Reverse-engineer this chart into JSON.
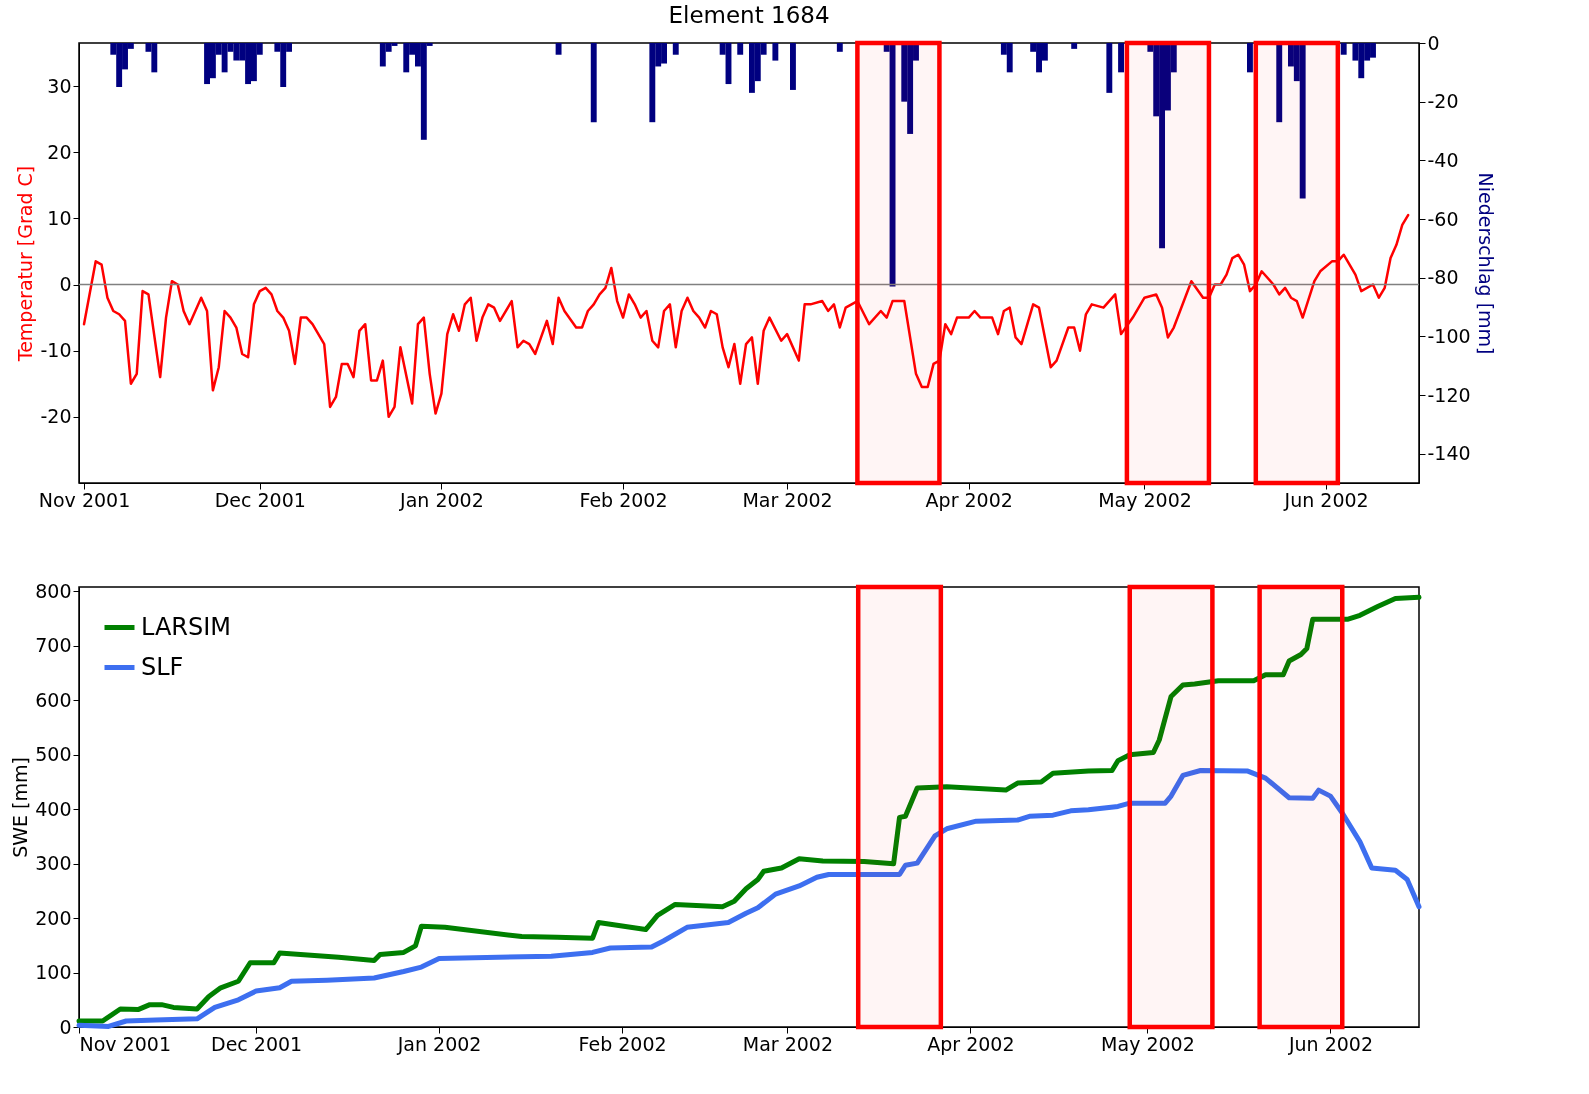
{
  "chart_data": [
    {
      "type": "line",
      "title": "Element 1684",
      "ylabel": "Temperatur [Grad C]",
      "y2label": "Niederschlag [mm]",
      "xlim": [
        "2001-11-01",
        "2002-06-16"
      ],
      "xticks": [
        {
          "value": "2001-11-01",
          "label": "Nov 2001"
        },
        {
          "value": "2001-12-01",
          "label": "Dec 2001"
        },
        {
          "value": "2002-01-01",
          "label": "Jan 2002"
        },
        {
          "value": "2002-02-01",
          "label": "Feb 2002"
        },
        {
          "value": "2002-03-01",
          "label": "Mar 2002"
        },
        {
          "value": "2002-04-01",
          "label": "Apr 2002"
        },
        {
          "value": "2002-05-01",
          "label": "May 2002"
        },
        {
          "value": "2002-06-01",
          "label": "Jun 2002"
        }
      ],
      "ylim": [
        -30,
        36.5
      ],
      "yticks": [
        -20,
        -10,
        0,
        10,
        20,
        30
      ],
      "y2lim": [
        -150,
        0
      ],
      "y2ticks": [
        0,
        -20,
        -40,
        -60,
        -80,
        -100,
        -120,
        -140
      ],
      "ref_lines": [
        {
          "axis": "y",
          "value": 0,
          "color": "#808080"
        }
      ],
      "bands": [
        {
          "axis": "x",
          "from": "2002-03-13",
          "to": "2002-03-27",
          "color": "#ff0000"
        },
        {
          "axis": "x",
          "from": "2002-04-28",
          "to": "2002-05-12",
          "color": "#ff0000"
        },
        {
          "axis": "x",
          "from": "2002-05-20",
          "to": "2002-06-03",
          "color": "#ff0000"
        }
      ],
      "series": [
        {
          "type": "bar",
          "axis": "y2",
          "color": "#000080",
          "x": [
            "2001-11-06",
            "2001-11-07",
            "2001-11-08",
            "2001-11-09",
            "2001-11-12",
            "2001-11-13",
            "2001-11-22",
            "2001-11-23",
            "2001-11-24",
            "2001-11-25",
            "2001-11-26",
            "2001-11-27",
            "2001-11-28",
            "2001-11-29",
            "2001-11-30",
            "2001-12-01",
            "2001-12-04",
            "2001-12-05",
            "2001-12-06",
            "2001-12-22",
            "2001-12-23",
            "2001-12-24",
            "2001-12-26",
            "2001-12-27",
            "2001-12-28",
            "2001-12-29",
            "2001-12-30",
            "2002-01-21",
            "2002-01-27",
            "2002-02-06",
            "2002-02-07",
            "2002-02-08",
            "2002-02-10",
            "2002-02-18",
            "2002-02-19",
            "2002-02-21",
            "2002-02-23",
            "2002-02-24",
            "2002-02-25",
            "2002-02-27",
            "2002-03-02",
            "2002-03-10",
            "2002-03-18",
            "2002-03-19",
            "2002-03-21",
            "2002-03-22",
            "2002-03-23",
            "2002-04-07",
            "2002-04-08",
            "2002-04-12",
            "2002-04-13",
            "2002-04-14",
            "2002-04-19",
            "2002-04-25",
            "2002-04-27",
            "2002-05-02",
            "2002-05-03",
            "2002-05-04",
            "2002-05-05",
            "2002-05-06",
            "2002-05-19",
            "2002-05-24",
            "2002-05-26",
            "2002-05-27",
            "2002-05-28",
            "2002-06-04",
            "2002-06-06",
            "2002-06-07",
            "2002-06-08",
            "2002-06-09"
          ],
          "values": [
            -4,
            -15,
            -9,
            -2,
            -3,
            -10,
            -14,
            -12,
            -4,
            -10,
            -3,
            -6,
            -6,
            -14,
            -13,
            -4,
            -3,
            -15,
            -3,
            -8,
            -3,
            -1,
            -10,
            -4,
            -8,
            -33,
            -1,
            -4,
            -27,
            -27,
            -8,
            -7,
            -4,
            -4,
            -14,
            -4,
            -17,
            -13,
            -4,
            -6,
            -16,
            -3,
            -3,
            -83,
            -20,
            -31,
            -6,
            -4,
            -10,
            -3,
            -10,
            -6,
            -2,
            -17,
            -10,
            -3,
            -25,
            -70,
            -23,
            -10,
            -10,
            -27,
            -8,
            -13,
            -53,
            -4,
            -6,
            -12,
            -6,
            -5
          ]
        },
        {
          "color": "#ff0000",
          "x": [
            "2001-11-01",
            "2001-11-03",
            "2001-11-04",
            "2001-11-05",
            "2001-11-06",
            "2001-11-07",
            "2001-11-08",
            "2001-11-09",
            "2001-11-10",
            "2001-11-11",
            "2001-11-12",
            "2001-11-14",
            "2001-11-15",
            "2001-11-16",
            "2001-11-17",
            "2001-11-18",
            "2001-11-19",
            "2001-11-21",
            "2001-11-22",
            "2001-11-23",
            "2001-11-24",
            "2001-11-25",
            "2001-11-26",
            "2001-11-27",
            "2001-11-28",
            "2001-11-29",
            "2001-11-30",
            "2001-12-01",
            "2001-12-02",
            "2001-12-03",
            "2001-12-04",
            "2001-12-05",
            "2001-12-06",
            "2001-12-07",
            "2001-12-08",
            "2001-12-09",
            "2001-12-10",
            "2001-12-12",
            "2001-12-13",
            "2001-12-14",
            "2001-12-15",
            "2001-12-16",
            "2001-12-17",
            "2001-12-18",
            "2001-12-19",
            "2001-12-20",
            "2001-12-21",
            "2001-12-22",
            "2001-12-23",
            "2001-12-24",
            "2001-12-25",
            "2001-12-27",
            "2001-12-28",
            "2001-12-29",
            "2001-12-30",
            "2001-12-31",
            "2002-01-01",
            "2002-01-02",
            "2002-01-03",
            "2002-01-04",
            "2002-01-05",
            "2002-01-06",
            "2002-01-07",
            "2002-01-08",
            "2002-01-09",
            "2002-01-10",
            "2002-01-11",
            "2002-01-13",
            "2002-01-14",
            "2002-01-15",
            "2002-01-16",
            "2002-01-17",
            "2002-01-19",
            "2002-01-20",
            "2002-01-21",
            "2002-01-22",
            "2002-01-24",
            "2002-01-25",
            "2002-01-26",
            "2002-01-27",
            "2002-01-28",
            "2002-01-29",
            "2002-01-30",
            "2002-01-31",
            "2002-02-01",
            "2002-02-02",
            "2002-02-03",
            "2002-02-04",
            "2002-02-05",
            "2002-02-06",
            "2002-02-07",
            "2002-02-08",
            "2002-02-09",
            "2002-02-10",
            "2002-02-11",
            "2002-02-12",
            "2002-02-13",
            "2002-02-14",
            "2002-02-15",
            "2002-02-16",
            "2002-02-17",
            "2002-02-18",
            "2002-02-19",
            "2002-02-20",
            "2002-02-21",
            "2002-02-22",
            "2002-02-23",
            "2002-02-24",
            "2002-02-25",
            "2002-02-26",
            "2002-02-28",
            "2002-03-01",
            "2002-03-03",
            "2002-03-04",
            "2002-03-05",
            "2002-03-07",
            "2002-03-08",
            "2002-03-09",
            "2002-03-10",
            "2002-03-11",
            "2002-03-13",
            "2002-03-15",
            "2002-03-17",
            "2002-03-18",
            "2002-03-19",
            "2002-03-21",
            "2002-03-23",
            "2002-03-24",
            "2002-03-25",
            "2002-03-26",
            "2002-03-27",
            "2002-03-28",
            "2002-03-29",
            "2002-03-30",
            "2002-04-01",
            "2002-04-02",
            "2002-04-03",
            "2002-04-05",
            "2002-04-06",
            "2002-04-07",
            "2002-04-08",
            "2002-04-09",
            "2002-04-10",
            "2002-04-12",
            "2002-04-13",
            "2002-04-15",
            "2002-04-16",
            "2002-04-18",
            "2002-04-19",
            "2002-04-20",
            "2002-04-21",
            "2002-04-22",
            "2002-04-24",
            "2002-04-26",
            "2002-04-27",
            "2002-04-29",
            "2002-05-01",
            "2002-05-03",
            "2002-05-04",
            "2002-05-05",
            "2002-05-06",
            "2002-05-09",
            "2002-05-11",
            "2002-05-12",
            "2002-05-13",
            "2002-05-14",
            "2002-05-15",
            "2002-05-16",
            "2002-05-17",
            "2002-05-18",
            "2002-05-19",
            "2002-05-20",
            "2002-05-21",
            "2002-05-23",
            "2002-05-24",
            "2002-05-25",
            "2002-05-26",
            "2002-05-27",
            "2002-05-28",
            "2002-05-30",
            "2002-05-31",
            "2002-06-02",
            "2002-06-03",
            "2002-06-04",
            "2002-06-06",
            "2002-06-07",
            "2002-06-09",
            "2002-06-10",
            "2002-06-11",
            "2002-06-12",
            "2002-06-13",
            "2002-06-14",
            "2002-06-15"
          ],
          "values": [
            -6,
            3.5,
            3,
            -2,
            -4,
            -4.5,
            -5.5,
            -15,
            -13.5,
            -1,
            -1.5,
            -14,
            -5,
            0.5,
            0,
            -4,
            -6,
            -2,
            -4,
            -16,
            -12.5,
            -4,
            -5,
            -6.5,
            -10.5,
            -11,
            -3,
            -1,
            -0.5,
            -1.5,
            -4,
            -5,
            -7,
            -12,
            -5,
            -5,
            -6,
            -9,
            -18.5,
            -17,
            -12,
            -12,
            -14,
            -7,
            -6,
            -14.5,
            -14.5,
            -11.5,
            -20,
            -18.5,
            -9.5,
            -18,
            -6,
            -5,
            -13.5,
            -19.5,
            -16.5,
            -7.5,
            -4.5,
            -7,
            -3,
            -2,
            -8.5,
            -5,
            -3,
            -3.5,
            -5.5,
            -2.5,
            -9.5,
            -8.5,
            -9,
            -10.5,
            -5.5,
            -9,
            -2,
            -4,
            -6.5,
            -6.5,
            -4,
            -3,
            -1.5,
            -0.5,
            2.5,
            -2.5,
            -5,
            -1.5,
            -3,
            -5,
            -4,
            -8.5,
            -9.5,
            -4,
            -3,
            -9.5,
            -4,
            -2,
            -4,
            -5,
            -6.5,
            -4,
            -4.5,
            -9.5,
            -12.5,
            -9,
            -15,
            -9,
            -8,
            -15,
            -7,
            -5,
            -8.5,
            -7.5,
            -11.5,
            -3,
            -3,
            -2.5,
            -4,
            -3,
            -6.5,
            -3.5,
            -2.5,
            -6,
            -4,
            -5,
            -2.5,
            -2.5,
            -13.5,
            -15.5,
            -15.5,
            -12,
            -11.5,
            -6,
            -7.5,
            -5,
            -5,
            -4,
            -5,
            -5,
            -7.5,
            -4,
            -3.5,
            -8,
            -9,
            -3,
            -3.5,
            -12.5,
            -11.5,
            -6.5,
            -6.5,
            -10,
            -4.5,
            -3,
            -3.5,
            -1.5,
            -7.5,
            -5,
            -2,
            -1.5,
            -3.5,
            -8,
            -6.5,
            0.5,
            -2,
            -2,
            0,
            0,
            1.5,
            4,
            4.5,
            3,
            -1,
            0,
            2,
            0,
            -1.5,
            -0.5,
            -2,
            -2.5,
            -5,
            0.5,
            2,
            3.5,
            3.5,
            4.5,
            1.5,
            -1,
            0,
            -2,
            -0.5,
            4,
            6,
            9,
            10.5
          ]
        }
      ]
    },
    {
      "type": "line",
      "ylabel": "SWE [mm]",
      "legend": "top left",
      "xlim": [
        "2001-11-01",
        "2002-06-16"
      ],
      "xticks": [
        {
          "value": "2001-11-01",
          "label": "Nov 2001"
        },
        {
          "value": "2001-12-01",
          "label": "Dec 2001"
        },
        {
          "value": "2002-01-01",
          "label": "Jan 2002"
        },
        {
          "value": "2002-02-01",
          "label": "Feb 2002"
        },
        {
          "value": "2002-03-01",
          "label": "Mar 2002"
        },
        {
          "value": "2002-04-01",
          "label": "Apr 2002"
        },
        {
          "value": "2002-05-01",
          "label": "May 2002"
        },
        {
          "value": "2002-06-01",
          "label": "Jun 2002"
        }
      ],
      "ylim": [
        0,
        808
      ],
      "yticks": [
        0,
        100,
        200,
        300,
        400,
        500,
        600,
        700,
        800
      ],
      "bands": [
        {
          "axis": "x",
          "from": "2002-03-13",
          "to": "2002-03-27",
          "color": "#ff0000"
        },
        {
          "axis": "x",
          "from": "2002-04-28",
          "to": "2002-05-12",
          "color": "#ff0000"
        },
        {
          "axis": "x",
          "from": "2002-05-20",
          "to": "2002-06-03",
          "color": "#ff0000"
        }
      ],
      "series": [
        {
          "name": "LARSIM",
          "color": "#008000",
          "x": [
            "2001-11-01",
            "2001-11-05",
            "2001-11-08",
            "2001-11-11",
            "2001-11-13",
            "2001-11-15",
            "2001-11-17",
            "2001-11-21",
            "2001-11-23",
            "2001-11-25",
            "2001-11-28",
            "2001-11-30",
            "2001-12-04",
            "2001-12-05",
            "2001-12-15",
            "2001-12-21",
            "2001-12-22",
            "2001-12-26",
            "2001-12-28",
            "2001-12-29",
            "2002-01-02",
            "2002-01-15",
            "2002-01-21",
            "2002-01-27",
            "2002-01-28",
            "2002-02-05",
            "2002-02-07",
            "2002-02-10",
            "2002-02-18",
            "2002-02-20",
            "2002-02-22",
            "2002-02-24",
            "2002-02-25",
            "2002-02-28",
            "2002-03-03",
            "2002-03-07",
            "2002-03-14",
            "2002-03-19",
            "2002-03-20",
            "2002-03-21",
            "2002-03-23",
            "2002-03-28",
            "2002-04-07",
            "2002-04-09",
            "2002-04-13",
            "2002-04-15",
            "2002-04-21",
            "2002-04-25",
            "2002-04-26",
            "2002-04-28",
            "2002-05-02",
            "2002-05-03",
            "2002-05-05",
            "2002-05-07",
            "2002-05-09",
            "2002-05-13",
            "2002-05-19",
            "2002-05-21",
            "2002-05-24",
            "2002-05-25",
            "2002-05-27",
            "2002-05-28",
            "2002-05-29",
            "2002-06-04",
            "2002-06-06",
            "2002-06-09",
            "2002-06-12",
            "2002-06-16"
          ],
          "values": [
            11,
            11,
            33,
            32,
            41,
            41,
            36,
            33,
            56,
            72,
            84,
            118,
            118,
            136,
            128,
            122,
            133,
            137,
            149,
            185,
            183,
            166,
            165,
            163,
            192,
            179,
            205,
            225,
            221,
            231,
            254,
            271,
            286,
            292,
            309,
            305,
            304,
            300,
            385,
            387,
            439,
            441,
            435,
            448,
            450,
            466,
            470,
            471,
            489,
            500,
            504,
            527,
            607,
            628,
            630,
            636,
            636,
            647,
            647,
            672,
            684,
            695,
            749,
            749,
            756,
            772,
            787,
            789
          ]
        },
        {
          "name": "SLF",
          "color": "#3d6ff0",
          "x": [
            "2001-11-01",
            "2001-11-06",
            "2001-11-09",
            "2001-11-14",
            "2001-11-21",
            "2001-11-24",
            "2001-11-28",
            "2001-12-01",
            "2001-12-05",
            "2001-12-07",
            "2001-12-13",
            "2001-12-21",
            "2001-12-26",
            "2001-12-29",
            "2002-01-01",
            "2002-01-20",
            "2002-01-27",
            "2002-01-30",
            "2002-02-06",
            "2002-02-08",
            "2002-02-12",
            "2002-02-19",
            "2002-02-22",
            "2002-02-24",
            "2002-02-27",
            "2002-03-03",
            "2002-03-06",
            "2002-03-08",
            "2002-03-20",
            "2002-03-21",
            "2002-03-23",
            "2002-03-26",
            "2002-03-28",
            "2002-04-02",
            "2002-04-09",
            "2002-04-11",
            "2002-04-15",
            "2002-04-18",
            "2002-04-21",
            "2002-04-26",
            "2002-04-28",
            "2002-05-04",
            "2002-05-05",
            "2002-05-07",
            "2002-05-10",
            "2002-05-18",
            "2002-05-21",
            "2002-05-25",
            "2002-05-29",
            "2002-05-30",
            "2002-06-01",
            "2002-06-03",
            "2002-06-06",
            "2002-06-08",
            "2002-06-12",
            "2002-06-14",
            "2002-06-16"
          ],
          "values": [
            3,
            1,
            11,
            13,
            15,
            36,
            50,
            66,
            72,
            84,
            86,
            90,
            102,
            110,
            126,
            130,
            137,
            145,
            147,
            158,
            183,
            192,
            209,
            219,
            244,
            259,
            275,
            280,
            280,
            297,
            301,
            351,
            364,
            378,
            380,
            387,
            389,
            397,
            399,
            405,
            411,
            411,
            424,
            462,
            471,
            470,
            457,
            421,
            420,
            435,
            424,
            393,
            340,
            292,
            288,
            271,
            221
          ]
        }
      ]
    }
  ]
}
